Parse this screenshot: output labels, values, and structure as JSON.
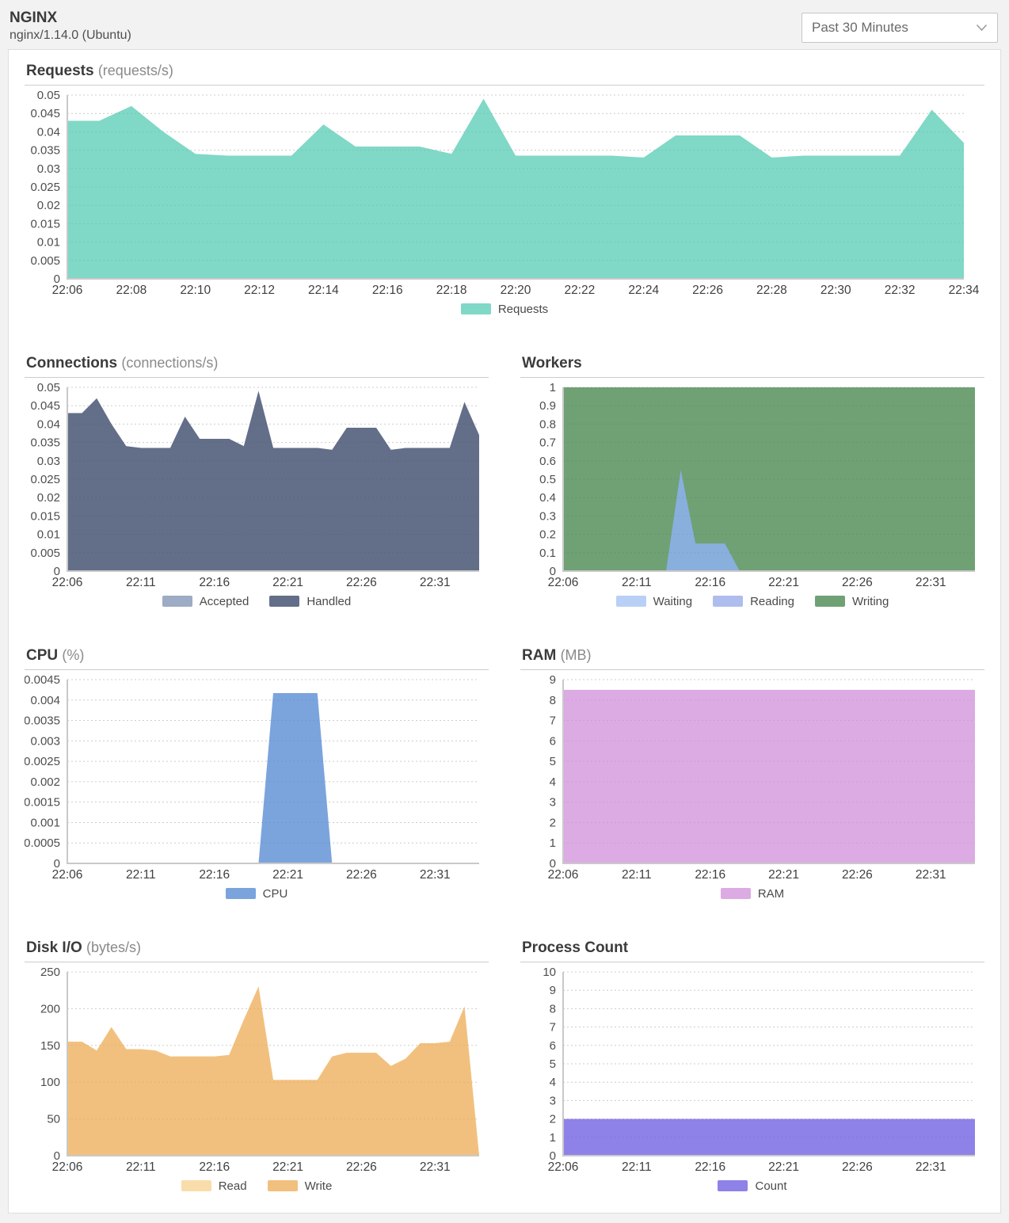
{
  "header": {
    "title": "NGINX",
    "subtitle": "nginx/1.14.0 (Ubuntu)",
    "time_range": {
      "value": "Past 30 Minutes"
    }
  },
  "chart_data": {
    "x_times": [
      "22:06",
      "22:07",
      "22:08",
      "22:09",
      "22:10",
      "22:11",
      "22:12",
      "22:13",
      "22:14",
      "22:15",
      "22:16",
      "22:17",
      "22:18",
      "22:19",
      "22:20",
      "22:21",
      "22:22",
      "22:23",
      "22:24",
      "22:25",
      "22:26",
      "22:27",
      "22:28",
      "22:29",
      "22:30",
      "22:31",
      "22:32",
      "22:33",
      "22:34"
    ],
    "charts": [
      {
        "id": "requests",
        "type": "area",
        "title": "Requests",
        "unit": "(requests/s)",
        "width": "full",
        "ylim": [
          0,
          0.05
        ],
        "y_tick_step": 0.005,
        "x_tick_step": 2,
        "grid": true,
        "legend_position": "bottom",
        "series": [
          {
            "name": "Requests",
            "color": "#80d8c6",
            "values": [
              0.043,
              0.043,
              0.047,
              0.04,
              0.034,
              0.0335,
              0.0335,
              0.0335,
              0.042,
              0.036,
              0.036,
              0.036,
              0.034,
              0.049,
              0.0335,
              0.0335,
              0.0335,
              0.0335,
              0.033,
              0.039,
              0.039,
              0.039,
              0.033,
              0.0335,
              0.0335,
              0.0335,
              0.0335,
              0.046,
              0.037
            ]
          }
        ]
      },
      {
        "id": "connections",
        "type": "area",
        "title": "Connections",
        "unit": "(connections/s)",
        "width": "half",
        "ylim": [
          0,
          0.05
        ],
        "y_tick_step": 0.005,
        "x_tick_step": 5,
        "grid": true,
        "legend_position": "bottom",
        "series": [
          {
            "name": "Accepted",
            "color": "#9dabc4",
            "values": [
              0.043,
              0.043,
              0.047,
              0.04,
              0.034,
              0.0335,
              0.0335,
              0.0335,
              0.042,
              0.036,
              0.036,
              0.036,
              0.034,
              0.049,
              0.0335,
              0.0335,
              0.0335,
              0.0335,
              0.033,
              0.039,
              0.039,
              0.039,
              0.033,
              0.0335,
              0.0335,
              0.0335,
              0.0335,
              0.046,
              0.037
            ]
          },
          {
            "name": "Handled",
            "color": "#636e89",
            "values": [
              0.043,
              0.043,
              0.047,
              0.04,
              0.034,
              0.0335,
              0.0335,
              0.0335,
              0.042,
              0.036,
              0.036,
              0.036,
              0.034,
              0.049,
              0.0335,
              0.0335,
              0.0335,
              0.0335,
              0.033,
              0.039,
              0.039,
              0.039,
              0.033,
              0.0335,
              0.0335,
              0.0335,
              0.0335,
              0.046,
              0.037
            ]
          }
        ]
      },
      {
        "id": "workers",
        "type": "area",
        "title": "Workers",
        "unit": "",
        "width": "half",
        "ylim": [
          0,
          1
        ],
        "y_tick_step": 0.1,
        "x_tick_step": 5,
        "grid": true,
        "legend_position": "bottom",
        "draw_order": [
          2,
          1,
          0
        ],
        "series": [
          {
            "name": "Waiting",
            "color": "#89afdd",
            "legend_color": "#b9d0f6",
            "values": [
              0,
              0,
              0,
              0,
              0,
              0,
              0,
              0,
              0.55,
              0.15,
              0.15,
              0.15,
              0,
              0,
              0,
              0,
              0,
              0,
              0,
              0,
              0,
              0,
              0,
              0,
              0,
              0,
              0,
              0,
              0
            ]
          },
          {
            "name": "Reading",
            "color": "#aebdee",
            "values": [
              0,
              0,
              0,
              0,
              0,
              0,
              0,
              0,
              0,
              0,
              0,
              0,
              0,
              0,
              0,
              0,
              0,
              0,
              0,
              0,
              0,
              0,
              0,
              0,
              0,
              0,
              0,
              0,
              0
            ]
          },
          {
            "name": "Writing",
            "color": "#6fa175",
            "values": [
              1,
              1,
              1,
              1,
              1,
              1,
              1,
              1,
              1,
              1,
              1,
              1,
              1,
              1,
              1,
              1,
              1,
              1,
              1,
              1,
              1,
              1,
              1,
              1,
              1,
              1,
              1,
              1,
              1
            ]
          }
        ]
      },
      {
        "id": "cpu",
        "type": "area",
        "title": "CPU",
        "unit": "(%)",
        "width": "half",
        "ylim": [
          0,
          0.0045
        ],
        "y_tick_step": 0.0005,
        "x_tick_step": 5,
        "grid": true,
        "legend_position": "bottom",
        "series": [
          {
            "name": "CPU",
            "color": "#7ba4dd",
            "values": [
              0,
              0,
              0,
              0,
              0,
              0,
              0,
              0,
              0,
              0,
              0,
              0,
              0,
              0,
              0.00417,
              0.00417,
              0.00417,
              0.00417,
              0,
              0,
              0,
              0,
              0,
              0,
              0,
              0,
              0,
              0,
              0
            ]
          }
        ]
      },
      {
        "id": "ram",
        "type": "area",
        "title": "RAM",
        "unit": "(MB)",
        "width": "half",
        "ylim": [
          0,
          9
        ],
        "y_tick_step": 1,
        "x_tick_step": 5,
        "grid": true,
        "legend_position": "bottom",
        "series": [
          {
            "name": "RAM",
            "color": "#dcabe3",
            "values": [
              8.5,
              8.5,
              8.5,
              8.5,
              8.5,
              8.5,
              8.5,
              8.5,
              8.5,
              8.5,
              8.5,
              8.5,
              8.5,
              8.5,
              8.5,
              8.5,
              8.5,
              8.5,
              8.5,
              8.5,
              8.5,
              8.5,
              8.5,
              8.5,
              8.5,
              8.5,
              8.5,
              8.5,
              8.5
            ]
          }
        ]
      },
      {
        "id": "disk-io",
        "type": "area",
        "title": "Disk I/O",
        "unit": "(bytes/s)",
        "width": "half",
        "ylim": [
          0,
          250
        ],
        "y_tick_step": 50,
        "x_tick_step": 5,
        "grid": true,
        "legend_position": "bottom",
        "series": [
          {
            "name": "Read",
            "color": "#f8ddab",
            "values": [
              155,
              155,
              143,
              175,
              145,
              145,
              143,
              135,
              135,
              135,
              135,
              137,
              185,
              230,
              103,
              103,
              103,
              103,
              135,
              140,
              140,
              140,
              122,
              132,
              153,
              153,
              155,
              203,
              0
            ]
          },
          {
            "name": "Write",
            "color": "#f2c07e",
            "values": [
              155,
              155,
              143,
              175,
              145,
              145,
              143,
              135,
              135,
              135,
              135,
              137,
              185,
              230,
              103,
              103,
              103,
              103,
              135,
              140,
              140,
              140,
              122,
              132,
              153,
              153,
              155,
              203,
              0
            ]
          }
        ]
      },
      {
        "id": "process-count",
        "type": "area",
        "title": "Process Count",
        "unit": "",
        "width": "half",
        "ylim": [
          0,
          10
        ],
        "y_tick_step": 1,
        "x_tick_step": 5,
        "grid": true,
        "legend_position": "bottom",
        "series": [
          {
            "name": "Count",
            "color": "#8e81e8",
            "values": [
              2,
              2,
              2,
              2,
              2,
              2,
              2,
              2,
              2,
              2,
              2,
              2,
              2,
              2,
              2,
              2,
              2,
              2,
              2,
              2,
              2,
              2,
              2,
              2,
              2,
              2,
              2,
              2,
              2
            ]
          }
        ]
      }
    ]
  }
}
